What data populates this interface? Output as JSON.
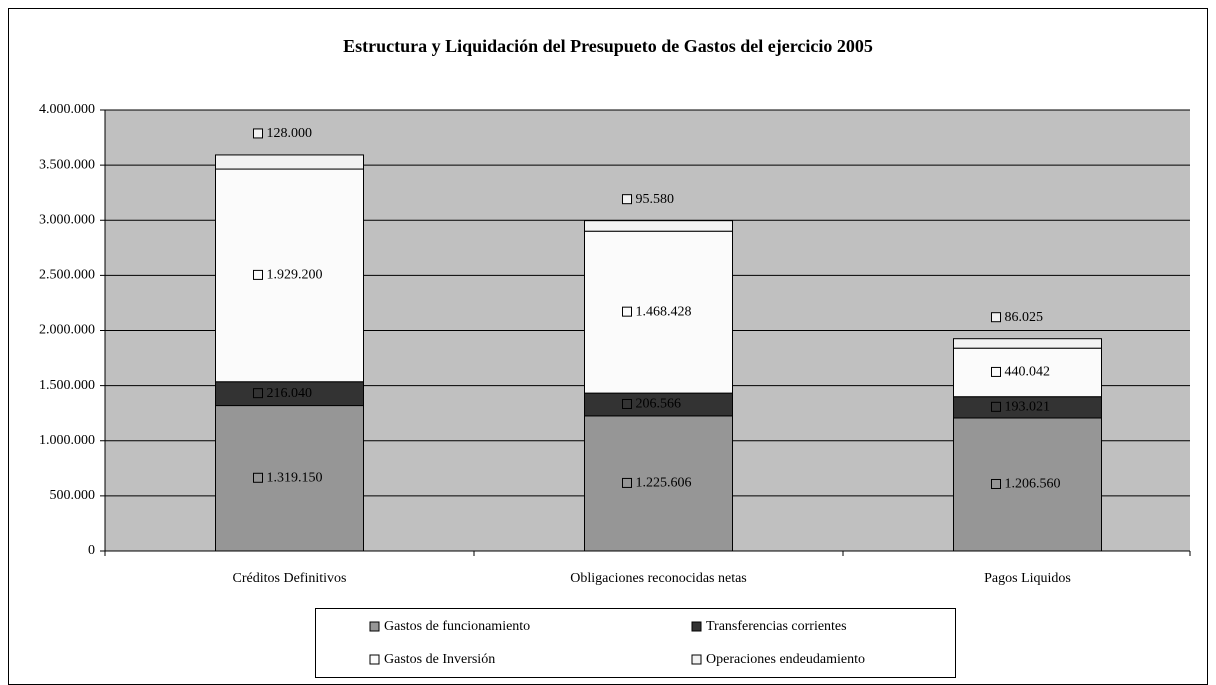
{
  "chart_data": {
    "type": "stacked_bar",
    "title": "Estructura y Liquidación del Presupueto de Gastos del ejercicio 2005",
    "categories": [
      "Créditos Definitivos",
      "Obligaciones reconocidas netas",
      "Pagos Liquidos"
    ],
    "series": [
      {
        "name": "Gastos de funcionamiento",
        "color": "#969696",
        "values": [
          1319150,
          1225606,
          1206560
        ],
        "value_labels": [
          "1.319.150",
          "1.225.606",
          "1.206.560"
        ]
      },
      {
        "name": "Transferencias corrientes",
        "color": "#333333",
        "values": [
          216040,
          206566,
          193021
        ],
        "value_labels": [
          "216.040",
          "206.566",
          "193.021"
        ]
      },
      {
        "name": "Gastos de Inversión",
        "color": "#fbfbfb",
        "values": [
          1929200,
          1468428,
          440042
        ],
        "value_labels": [
          "1.929.200",
          "1.468.428",
          "440.042"
        ]
      },
      {
        "name": "Operaciones endeudamiento",
        "color": "#f2f2f2",
        "values": [
          128000,
          95580,
          86025
        ],
        "value_labels": [
          "128.000",
          "95.580",
          "86.025"
        ]
      }
    ],
    "ylim": [
      0,
      4000000
    ],
    "yticks": [
      0,
      {
        "value": 500000,
        "label": "500.000"
      },
      {
        "value": 1000000,
        "label": "1.000.000"
      },
      {
        "value": 1500000,
        "label": "1.500.000"
      },
      {
        "value": 2000000,
        "label": "2.000.000"
      },
      {
        "value": 2500000,
        "label": "2.500.000"
      },
      {
        "value": 3000000,
        "label": "3.000.000"
      },
      {
        "value": 3500000,
        "label": "3.500.000"
      },
      {
        "value": 4000000,
        "label": "4.000.000"
      }
    ],
    "grid": true,
    "legend": "bottom"
  }
}
